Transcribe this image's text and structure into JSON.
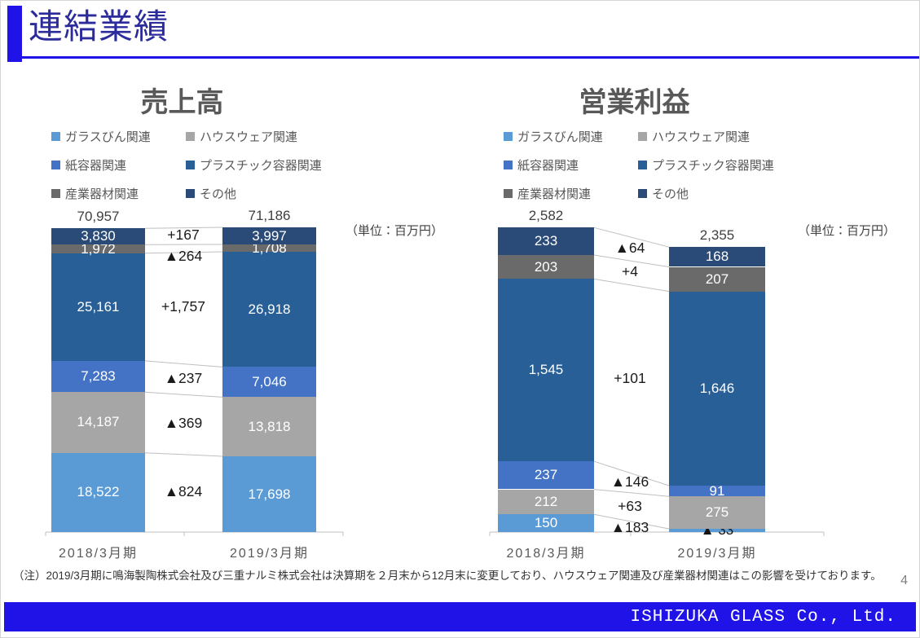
{
  "header": {
    "title": "連結業績"
  },
  "chart_data": [
    {
      "type": "bar",
      "variant": "stacked-column-comparison",
      "title": "売上高",
      "unit_label": "（単位：百万円）",
      "categories": [
        "2018/3月期",
        "2019/3月期"
      ],
      "legend_position": "top",
      "grid": false,
      "series": [
        {
          "name": "ガラスびん関連",
          "color": "#5B9BD5",
          "values": [
            18522,
            17698
          ],
          "labels": [
            "18,522",
            "17,698"
          ]
        },
        {
          "name": "ハウスウェア関連",
          "color": "#A6A6A6",
          "values": [
            14187,
            13818
          ],
          "labels": [
            "14,187",
            "13,818"
          ]
        },
        {
          "name": "紙容器関連",
          "color": "#4472C4",
          "values": [
            7283,
            7046
          ],
          "labels": [
            "7,283",
            "7,046"
          ]
        },
        {
          "name": "プラスチック容器関連",
          "color": "#275F96",
          "values": [
            25161,
            26918
          ],
          "labels": [
            "25,161",
            "26,918"
          ]
        },
        {
          "name": "産業器材関連",
          "color": "#6A6A6A",
          "values": [
            1972,
            1708
          ],
          "labels": [
            "1,972",
            "1,708"
          ]
        },
        {
          "name": "その他",
          "color": "#2A4A78",
          "values": [
            3830,
            3997
          ],
          "labels": [
            "3,830",
            "3,997"
          ]
        }
      ],
      "totals": {
        "values": [
          70957,
          71186
        ],
        "labels": [
          "70,957",
          "71,186"
        ]
      },
      "deltas": [
        "▲824",
        "▲369",
        "▲237",
        "+1,757",
        "▲264",
        "+167"
      ]
    },
    {
      "type": "bar",
      "variant": "stacked-column-comparison",
      "title": "営業利益",
      "unit_label": "（単位：百万円）",
      "categories": [
        "2018/3月期",
        "2019/3月期"
      ],
      "legend_position": "top",
      "grid": false,
      "series": [
        {
          "name": "ガラスびん関連",
          "color": "#5B9BD5",
          "values": [
            150,
            -33
          ],
          "labels": [
            "150",
            "▲ 33"
          ]
        },
        {
          "name": "ハウスウェア関連",
          "color": "#A6A6A6",
          "values": [
            212,
            275
          ],
          "labels": [
            "212",
            "275"
          ]
        },
        {
          "name": "紙容器関連",
          "color": "#4472C4",
          "values": [
            237,
            91
          ],
          "labels": [
            "237",
            "91"
          ]
        },
        {
          "name": "プラスチック容器関連",
          "color": "#275F96",
          "values": [
            1545,
            1646
          ],
          "labels": [
            "1,545",
            "1,646"
          ]
        },
        {
          "name": "産業器材関連",
          "color": "#6A6A6A",
          "values": [
            203,
            207
          ],
          "labels": [
            "203",
            "207"
          ]
        },
        {
          "name": "その他",
          "color": "#2A4A78",
          "values": [
            233,
            168
          ],
          "labels": [
            "233",
            "168"
          ]
        }
      ],
      "totals": {
        "values": [
          2582,
          2355
        ],
        "labels": [
          "2,582",
          "2,355"
        ]
      },
      "deltas": [
        "▲183",
        "+63",
        "▲146",
        "+101",
        "+4",
        "▲64"
      ]
    }
  ],
  "footnote": "（注）2019/3月期に鳴海製陶株式会社及び三重ナルミ株式会社は決算期を２月末から12月末に変更しており、ハウスウェア関連及び産業器材関連はこの影響を受けております。",
  "footer": {
    "company": "ISHIZUKA GLASS Co., Ltd.",
    "page_number": "4"
  },
  "colors": {
    "accent_blue": "#2013E8",
    "title_text": "#2B2B9B",
    "axis_gray": "#BFBFBF",
    "chart_text": "#595959"
  }
}
